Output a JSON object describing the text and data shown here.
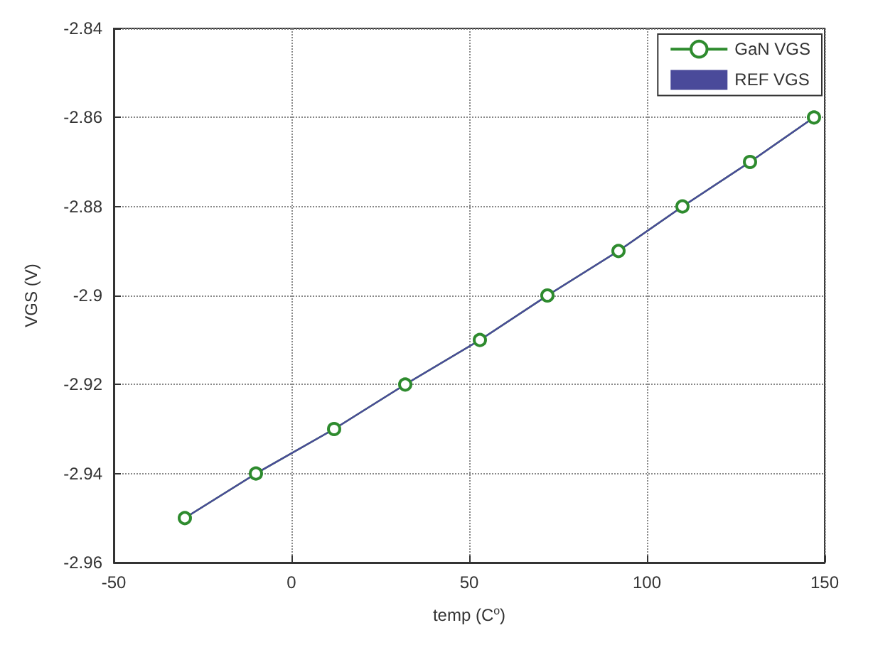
{
  "chart_data": {
    "type": "line",
    "xlabel": "temp (C$^{o}$)",
    "ylabel": "VGS (V)",
    "x": [
      -30,
      -10,
      12,
      32,
      53,
      72,
      92,
      110,
      129,
      147
    ],
    "series": [
      {
        "name": "GaN VGS",
        "color": "#2e8b2e",
        "marker": "circle",
        "values": [
          -2.95,
          -2.94,
          -2.93,
          -2.92,
          -2.91,
          -2.9,
          -2.89,
          -2.88,
          -2.87,
          -2.86
        ]
      },
      {
        "name": "REF VGS",
        "color": "#4a4a9a",
        "marker": "none",
        "values": [
          -2.95,
          -2.94,
          -2.93,
          -2.92,
          -2.91,
          -2.9,
          -2.89,
          -2.88,
          -2.87,
          -2.86
        ]
      }
    ],
    "xlim": [
      -50,
      150
    ],
    "xticks": [
      -50,
      0,
      50,
      100,
      150
    ],
    "ylim": [
      -2.96,
      -2.84
    ],
    "yticks": [
      -2.96,
      -2.94,
      -2.92,
      -2.9,
      -2.88,
      -2.86,
      -2.84
    ],
    "grid": true,
    "legend": "top right"
  }
}
